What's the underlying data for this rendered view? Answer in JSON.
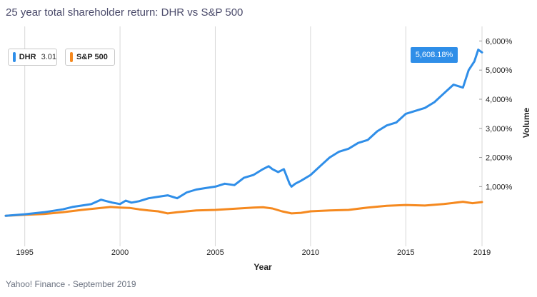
{
  "title": "25 year total shareholder return: DHR vs S&P 500",
  "source": "Yahoo! Finance - September 2019",
  "tooltip": "5,608.18%",
  "legend": {
    "dhr": {
      "name": "DHR",
      "value": "3.01"
    },
    "sp": {
      "name": "S&P 500"
    }
  },
  "colors": {
    "dhr": "#2f8ee8",
    "sp": "#f5891f",
    "grid": "#d8d8d8"
  },
  "chart_data": {
    "type": "line",
    "title": "25 year total shareholder return: DHR vs S&P 500",
    "xlabel": "Year",
    "ylabel": "Volume",
    "xlim": [
      1994.0,
      2019.0
    ],
    "ylim": [
      -1050,
      6500
    ],
    "x_ticks": [
      1995,
      2000,
      2005,
      2010,
      2015,
      2019
    ],
    "y_ticks": [
      1000,
      2000,
      3000,
      4000,
      5000,
      6000
    ],
    "y_tick_labels": [
      "1,000%",
      "2,000%",
      "3,000%",
      "4,000%",
      "5,000%",
      "6,000%"
    ],
    "series": [
      {
        "name": "DHR",
        "x": [
          1994.0,
          1995.0,
          1996.0,
          1997.0,
          1997.5,
          1998.0,
          1998.5,
          1999.0,
          1999.3,
          1999.6,
          2000.0,
          2000.3,
          2000.6,
          2001.0,
          2001.5,
          2002.0,
          2002.5,
          2003.0,
          2003.5,
          2004.0,
          2004.5,
          2005.0,
          2005.5,
          2006.0,
          2006.5,
          2007.0,
          2007.5,
          2007.8,
          2008.0,
          2008.3,
          2008.6,
          2008.9,
          2009.0,
          2009.2,
          2009.5,
          2010.0,
          2010.5,
          2011.0,
          2011.5,
          2012.0,
          2012.5,
          2013.0,
          2013.5,
          2014.0,
          2014.5,
          2015.0,
          2015.5,
          2016.0,
          2016.5,
          2017.0,
          2017.5,
          2018.0,
          2018.3,
          2018.6,
          2018.8,
          2019.0
        ],
        "values": [
          0,
          50,
          120,
          220,
          300,
          350,
          400,
          550,
          500,
          450,
          400,
          520,
          450,
          500,
          600,
          650,
          700,
          600,
          800,
          900,
          950,
          1000,
          1100,
          1050,
          1300,
          1400,
          1600,
          1700,
          1600,
          1500,
          1600,
          1100,
          1000,
          1100,
          1200,
          1400,
          1700,
          2000,
          2200,
          2300,
          2500,
          2600,
          2900,
          3100,
          3200,
          3500,
          3600,
          3700,
          3900,
          4200,
          4500,
          4400,
          5000,
          5300,
          5700,
          5608
        ]
      },
      {
        "name": "S&P 500",
        "x": [
          1994.0,
          1995.0,
          1996.0,
          1997.0,
          1998.0,
          1999.0,
          1999.5,
          2000.0,
          2000.5,
          2001.0,
          2001.5,
          2002.0,
          2002.5,
          2003.0,
          2004.0,
          2005.0,
          2006.0,
          2007.0,
          2007.5,
          2008.0,
          2008.5,
          2009.0,
          2009.5,
          2010.0,
          2011.0,
          2012.0,
          2013.0,
          2014.0,
          2015.0,
          2016.0,
          2017.0,
          2018.0,
          2018.5,
          2019.0
        ],
        "values": [
          0,
          30,
          60,
          120,
          200,
          270,
          300,
          280,
          270,
          220,
          180,
          150,
          80,
          120,
          180,
          200,
          240,
          280,
          290,
          250,
          150,
          80,
          100,
          150,
          180,
          200,
          280,
          340,
          370,
          350,
          400,
          480,
          430,
          470
        ]
      }
    ]
  }
}
